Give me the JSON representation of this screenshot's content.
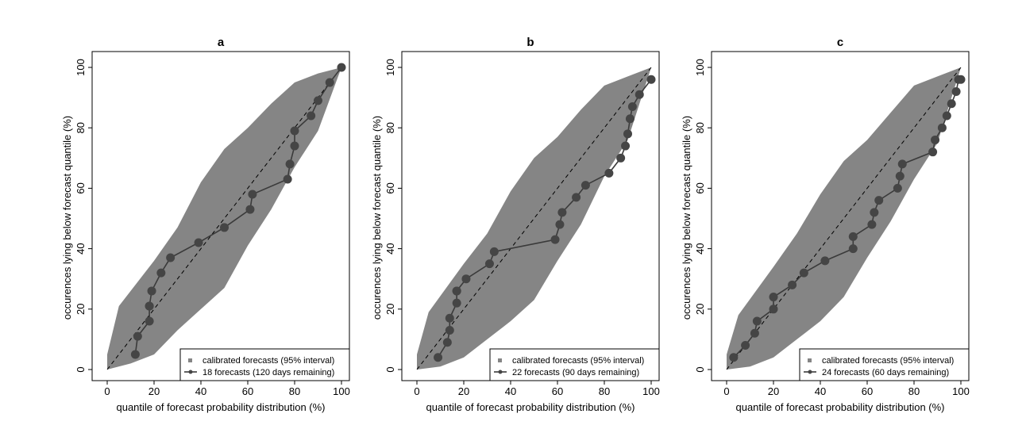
{
  "chart_data": [
    {
      "type": "line",
      "title": "a",
      "xlabel": "quantile of forecast probability distribution (%)",
      "ylabel": "occurences lying below forecast quantile (%)",
      "xlim": [
        0,
        100
      ],
      "ylim": [
        0,
        100
      ],
      "xticks": [
        0,
        20,
        40,
        60,
        80,
        100
      ],
      "yticks": [
        0,
        20,
        40,
        60,
        80,
        100
      ],
      "grid": false,
      "legend_position": "bottom-right",
      "legend": [
        "calibrated forecasts (95% interval)",
        "18 forecasts (120 days remaining)"
      ],
      "band_upper": [
        [
          0,
          5
        ],
        [
          5,
          21
        ],
        [
          20,
          36
        ],
        [
          30,
          47
        ],
        [
          40,
          62
        ],
        [
          50,
          73
        ],
        [
          60,
          80
        ],
        [
          70,
          88
        ],
        [
          80,
          95
        ],
        [
          90,
          98
        ],
        [
          100,
          100
        ]
      ],
      "band_lower": [
        [
          0,
          0
        ],
        [
          10,
          2
        ],
        [
          20,
          5
        ],
        [
          30,
          13
        ],
        [
          40,
          20
        ],
        [
          50,
          27
        ],
        [
          60,
          41
        ],
        [
          70,
          53
        ],
        [
          80,
          67
        ],
        [
          90,
          79
        ],
        [
          100,
          100
        ]
      ],
      "series": [
        {
          "x": [
            12,
            13,
            18,
            18,
            18,
            19,
            23,
            27,
            39,
            50,
            61,
            62,
            77,
            78,
            80,
            80,
            87,
            90,
            95,
            100
          ],
          "y": [
            5,
            11,
            16,
            21,
            21,
            26,
            32,
            37,
            42,
            47,
            53,
            58,
            63,
            68,
            74,
            79,
            84,
            89,
            95,
            100
          ]
        }
      ]
    },
    {
      "type": "line",
      "title": "b",
      "xlabel": "quantile of forecast probability distribution (%)",
      "ylabel": "occurences lying below forecast quantile (%)",
      "xlim": [
        0,
        100
      ],
      "ylim": [
        0,
        100
      ],
      "xticks": [
        0,
        20,
        40,
        60,
        80,
        100
      ],
      "yticks": [
        0,
        20,
        40,
        60,
        80,
        100
      ],
      "grid": false,
      "legend_position": "bottom-right",
      "legend": [
        "calibrated forecasts (95% interval)",
        "22 forecasts (90 days remaining)"
      ],
      "band_upper": [
        [
          0,
          5
        ],
        [
          5,
          19
        ],
        [
          20,
          35
        ],
        [
          30,
          45
        ],
        [
          40,
          59
        ],
        [
          50,
          70
        ],
        [
          60,
          77
        ],
        [
          70,
          86
        ],
        [
          80,
          94
        ],
        [
          90,
          97
        ],
        [
          100,
          100
        ]
      ],
      "band_lower": [
        [
          0,
          0
        ],
        [
          10,
          1
        ],
        [
          20,
          4
        ],
        [
          30,
          10
        ],
        [
          40,
          16
        ],
        [
          50,
          23
        ],
        [
          60,
          36
        ],
        [
          70,
          48
        ],
        [
          80,
          64
        ],
        [
          90,
          76
        ],
        [
          100,
          100
        ]
      ],
      "series": [
        {
          "x": [
            9,
            13,
            14,
            14,
            17,
            17,
            17,
            21,
            31,
            33,
            59,
            61,
            62,
            68,
            72,
            82,
            87,
            89,
            90,
            91,
            92,
            95,
            100
          ],
          "y": [
            4,
            9,
            13,
            17,
            22,
            26,
            26,
            30,
            35,
            39,
            43,
            48,
            52,
            57,
            61,
            65,
            70,
            74,
            78,
            83,
            87,
            91,
            96
          ]
        }
      ]
    },
    {
      "type": "line",
      "title": "c",
      "xlabel": "quantile of forecast probability distribution (%)",
      "ylabel": "occurences lying below forecast quantile (%)",
      "xlim": [
        0,
        100
      ],
      "ylim": [
        0,
        100
      ],
      "xticks": [
        0,
        20,
        40,
        60,
        80,
        100
      ],
      "yticks": [
        0,
        20,
        40,
        60,
        80,
        100
      ],
      "grid": false,
      "legend_position": "bottom-right",
      "legend": [
        "calibrated forecasts (95% interval)",
        "24 forecasts (60 days remaining)"
      ],
      "band_upper": [
        [
          0,
          5
        ],
        [
          5,
          18
        ],
        [
          20,
          34
        ],
        [
          30,
          45
        ],
        [
          40,
          58
        ],
        [
          50,
          69
        ],
        [
          60,
          76
        ],
        [
          70,
          85
        ],
        [
          80,
          94
        ],
        [
          90,
          97
        ],
        [
          100,
          100
        ]
      ],
      "band_lower": [
        [
          0,
          0
        ],
        [
          10,
          1
        ],
        [
          20,
          4
        ],
        [
          30,
          10
        ],
        [
          40,
          16
        ],
        [
          50,
          24
        ],
        [
          60,
          37
        ],
        [
          70,
          49
        ],
        [
          80,
          63
        ],
        [
          90,
          75
        ],
        [
          100,
          100
        ]
      ],
      "series": [
        {
          "x": [
            3,
            8,
            12,
            13,
            20,
            20,
            28,
            33,
            42,
            54,
            54,
            62,
            63,
            65,
            73,
            74,
            75,
            88,
            89,
            92,
            94,
            96,
            98,
            99,
            100
          ],
          "y": [
            4,
            8,
            12,
            16,
            20,
            24,
            28,
            32,
            36,
            40,
            44,
            48,
            52,
            56,
            60,
            64,
            68,
            72,
            76,
            80,
            84,
            88,
            92,
            96,
            96
          ]
        }
      ]
    }
  ]
}
